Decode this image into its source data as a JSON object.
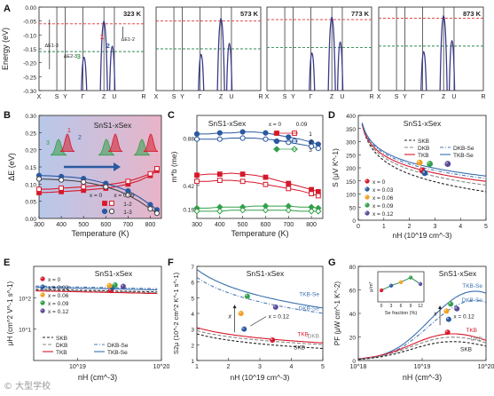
{
  "panel_labels": [
    "A",
    "B",
    "C",
    "D",
    "E",
    "F",
    "G"
  ],
  "watermark": "© 大型学校",
  "colors": {
    "x0": "#d7192b",
    "x003": "#2a5aa0",
    "x006": "#f0a020",
    "x009": "#33a04a",
    "x012": "#5a4a9a",
    "skb": "#222222",
    "tkb": "#d7192b",
    "tkbse": "#3a6fb0",
    "dkb": "#888888",
    "dkbse": "#4a7ab8",
    "band": "#3a3a8a",
    "red_dash": "#e13030",
    "green_dash": "#2e8a55",
    "line1": "#d7192b",
    "line2": "#2a5aa0",
    "line3": "#33a04a"
  },
  "chart_data": [
    {
      "panel": "A",
      "type": "line",
      "ylabel": "Energy (eV)",
      "yticks": [
        "0.00",
        "-0.05",
        "-0.10",
        "-0.15",
        "-0.20",
        "-0.25",
        "-0.30"
      ],
      "ylim": [
        -0.3,
        0.0
      ],
      "kpoints": [
        "X",
        "S",
        "Y",
        "Γ",
        "Z",
        "U",
        "R"
      ],
      "subpanels": [
        {
          "temp": "323 K",
          "red_level": -0.06,
          "green_level": -0.16,
          "labels": [
            "1",
            "2",
            "3"
          ],
          "annotations": [
            "ΔE1-3",
            "ΔE2-3",
            "ΔE1-2"
          ]
        },
        {
          "temp": "573 K",
          "red_level": -0.05,
          "green_level": -0.15
        },
        {
          "temp": "773 K",
          "red_level": -0.045,
          "green_level": -0.145
        },
        {
          "temp": "873 K",
          "red_level": -0.04,
          "green_level": -0.14
        }
      ]
    },
    {
      "panel": "B",
      "type": "line",
      "title": "SnS1-xSex",
      "xlabel": "Temperature (K)",
      "ylabel": "ΔE (eV)",
      "xlim": [
        300,
        850
      ],
      "ylim": [
        0,
        0.3
      ],
      "xticks": [
        "300",
        "400",
        "500",
        "600",
        "700",
        "800"
      ],
      "yticks": [
        "0.00",
        "0.05",
        "0.10",
        "0.15",
        "0.20",
        "0.25",
        "0.30"
      ],
      "legend": [
        "x = 0",
        "x = 0.09",
        "1-2",
        "1-3"
      ],
      "series": [
        {
          "name": "1-2",
          "x": [
            300,
            350,
            400,
            450,
            500,
            550,
            600,
            650,
            700,
            750,
            800,
            830
          ],
          "values": [
            0.075,
            0.076,
            0.078,
            0.08,
            0.082,
            0.085,
            0.088,
            0.093,
            0.1,
            0.11,
            0.125,
            0.14
          ]
        },
        {
          "name": "1-2",
          "x": [
            300,
            350,
            400,
            450,
            500,
            550,
            600,
            650,
            700,
            750,
            800,
            830
          ],
          "values": [
            0.085,
            0.085,
            0.088,
            0.09,
            0.092,
            0.095,
            0.098,
            0.102,
            0.108,
            0.118,
            0.13,
            0.145
          ]
        },
        {
          "name": "1-3",
          "x": [
            300,
            350,
            400,
            450,
            500,
            550,
            600,
            650,
            700,
            750,
            800,
            830
          ],
          "values": [
            0.125,
            0.124,
            0.122,
            0.12,
            0.116,
            0.11,
            0.102,
            0.092,
            0.08,
            0.062,
            0.04,
            0.025
          ]
        },
        {
          "name": "1-3",
          "x": [
            300,
            350,
            400,
            450,
            500,
            550,
            600,
            650,
            700,
            750,
            800,
            830
          ],
          "values": [
            0.115,
            0.114,
            0.112,
            0.11,
            0.106,
            0.1,
            0.092,
            0.082,
            0.068,
            0.05,
            0.028,
            0.015
          ]
        }
      ]
    },
    {
      "panel": "C",
      "type": "line",
      "title": "SnS1-xSex",
      "xlabel": "Temperature (K)",
      "ylabel": "m*b (me)",
      "xlim": [
        300,
        850
      ],
      "ylim": [
        0.1,
        1.1
      ],
      "xticks": [
        "300",
        "400",
        "500",
        "600",
        "700",
        "800"
      ],
      "yticks": [
        "0.88",
        "0.42",
        "0.19"
      ],
      "legend_head": [
        "x = 0",
        "0.09"
      ],
      "legend": [
        "1",
        "2",
        "3"
      ],
      "series": [
        {
          "name": "1",
          "x": [
            300,
            350,
            400,
            450,
            500,
            550,
            600,
            650,
            700,
            750,
            800,
            830
          ],
          "values": [
            0.52,
            0.53,
            0.53,
            0.54,
            0.53,
            0.52,
            0.5,
            0.47,
            0.44,
            0.41,
            0.38,
            0.36
          ]
        },
        {
          "name": "1",
          "x": [
            300,
            350,
            400,
            450,
            500,
            550,
            600,
            650,
            700,
            750,
            800,
            830
          ],
          "values": [
            0.46,
            0.46,
            0.47,
            0.47,
            0.46,
            0.45,
            0.43,
            0.41,
            0.39,
            0.37,
            0.34,
            0.32
          ]
        },
        {
          "name": "2",
          "x": [
            300,
            350,
            400,
            450,
            500,
            550,
            600,
            650,
            700,
            750,
            800,
            830
          ],
          "values": [
            0.92,
            0.92,
            0.93,
            0.93,
            0.94,
            0.94,
            0.93,
            0.91,
            0.89,
            0.87,
            0.84,
            0.82
          ]
        },
        {
          "name": "2",
          "x": [
            300,
            350,
            400,
            450,
            500,
            550,
            600,
            650,
            700,
            750,
            800,
            830
          ],
          "values": [
            0.87,
            0.87,
            0.87,
            0.88,
            0.88,
            0.88,
            0.87,
            0.86,
            0.84,
            0.82,
            0.8,
            0.78
          ]
        },
        {
          "name": "3",
          "x": [
            300,
            350,
            400,
            450,
            500,
            550,
            600,
            650,
            700,
            750,
            800,
            830
          ],
          "values": [
            0.2,
            0.2,
            0.21,
            0.21,
            0.21,
            0.22,
            0.22,
            0.22,
            0.22,
            0.21,
            0.21,
            0.2
          ]
        },
        {
          "name": "3",
          "x": [
            300,
            350,
            400,
            450,
            500,
            550,
            600,
            650,
            700,
            750,
            800,
            830
          ],
          "values": [
            0.17,
            0.17,
            0.17,
            0.18,
            0.18,
            0.18,
            0.18,
            0.18,
            0.18,
            0.17,
            0.17,
            0.17
          ]
        }
      ]
    },
    {
      "panel": "D",
      "type": "line",
      "title": "SnS1-xSex",
      "xlabel": "nH (10^19 cm^-3)",
      "ylabel": "S (μV K^-1)",
      "xlim": [
        0,
        5
      ],
      "ylim": [
        0,
        400
      ],
      "xticks": [
        "0",
        "1",
        "2",
        "3",
        "4",
        "5"
      ],
      "yticks": [
        "0",
        "50",
        "100",
        "150",
        "200",
        "250",
        "300",
        "350",
        "400"
      ],
      "legend": [
        "SKB",
        "DKB",
        "TKB",
        "DKB-Se",
        "TKB-Se"
      ],
      "points": [
        {
          "name": "x = 0",
          "x": 2.5,
          "y": 190
        },
        {
          "name": "x = 0.03",
          "x": 2.6,
          "y": 180
        },
        {
          "name": "x = 0.06",
          "x": 2.4,
          "y": 220
        },
        {
          "name": "x = 0.09",
          "x": 2.8,
          "y": 215
        },
        {
          "name": "x = 0.12",
          "x": 3.5,
          "y": 215
        }
      ],
      "point_legend": [
        "x = 0",
        "x = 0.03",
        "x = 0.06",
        "x = 0.09",
        "x = 0.12"
      ]
    },
    {
      "panel": "E",
      "type": "line",
      "title": "SnS1-xSex",
      "xlabel": "nH (cm^-3)",
      "ylabel": "μH (cm^2 V^-1 s^-1)",
      "xscale": "log",
      "yscale": "log",
      "xlim": [
        3e+18,
        1e+20
      ],
      "ylim": [
        1,
        1000
      ],
      "xticks": [
        "10^19",
        "10^20"
      ],
      "yticks": [
        "10^1",
        "10^2"
      ],
      "legend": [
        "SKB",
        "DKB",
        "TKB",
        "DKB-Se",
        "TKB-Se"
      ],
      "point_legend": [
        "x = 0",
        "x = 0.03",
        "x = 0.06",
        "x = 0.09",
        "x = 0.12"
      ]
    },
    {
      "panel": "F",
      "type": "line",
      "title": "SnS1-xSex",
      "xlabel": "nH (10^19 cm^-3)",
      "ylabel": "S2μ (10^-2 cm^2 K^-1 s^-1)",
      "xlim": [
        1,
        5
      ],
      "ylim": [
        1,
        7
      ],
      "xticks": [
        "1",
        "2",
        "3",
        "4",
        "5"
      ],
      "yticks": [
        "1",
        "2",
        "3",
        "4",
        "5",
        "6",
        "7"
      ],
      "curve_labels": [
        "TKB-Se",
        "DKB-Se",
        "TKB",
        "DKB",
        "SKB"
      ],
      "annotations": [
        "x",
        "x = 0.12"
      ]
    },
    {
      "panel": "G",
      "type": "line",
      "title": "SnS1-xSex",
      "xlabel": "nH (cm^-3)",
      "ylabel": "PF (μW cm^-1 K^-2)",
      "xscale": "log",
      "xlim": [
        1e+18,
        1e+20
      ],
      "ylim": [
        0,
        80
      ],
      "xticks": [
        "10^18",
        "10^19",
        "10^20"
      ],
      "yticks": [
        "0",
        "20",
        "40",
        "60",
        "80"
      ],
      "curve_labels": [
        "TKB-Se",
        "DKB-Se",
        "TKB",
        "DKB",
        "SKB"
      ],
      "annotations": [
        "x",
        "x = 0.12"
      ],
      "inset": {
        "xlabel": "Se fraction (%)",
        "ylabel": "μ/m*",
        "xticks": [
          "0",
          "3",
          "6",
          "9",
          "12"
        ]
      }
    }
  ]
}
